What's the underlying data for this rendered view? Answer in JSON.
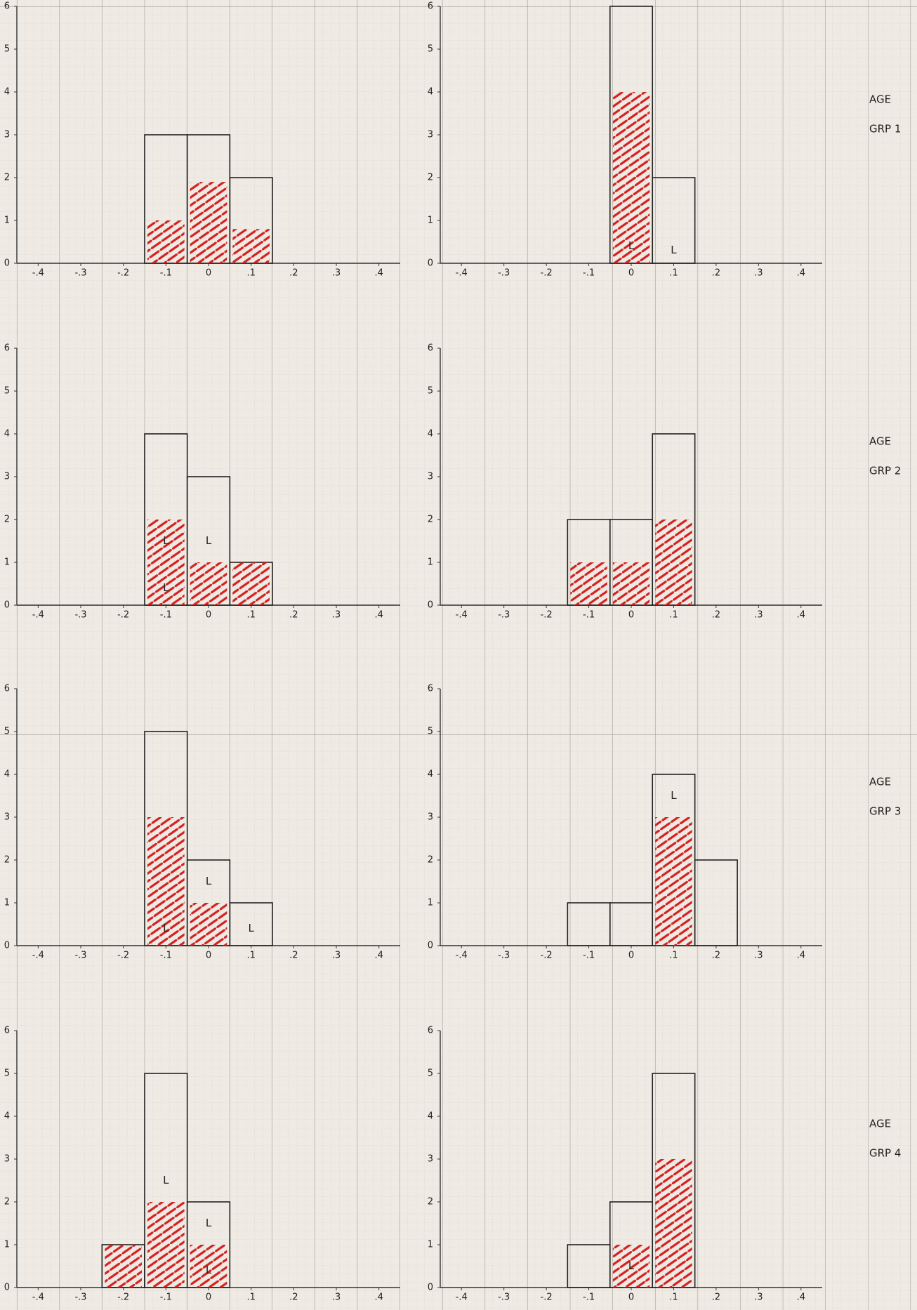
{
  "chart_data": [
    {
      "type": "bar",
      "x": [
        -0.1,
        0,
        0.1
      ],
      "series": [
        {
          "color": "#222222",
          "values": [
            3,
            3,
            2
          ]
        },
        {
          "color": "#d42020",
          "values": [
            1,
            1.9,
            0.8
          ]
        }
      ],
      "xlim": [
        -0.45,
        0.45
      ],
      "ylim": [
        0,
        6
      ],
      "yticks": [
        0,
        1,
        2,
        3,
        4,
        5,
        6
      ],
      "xticks": [
        {
          "value": -0.4,
          "label": "-.4"
        },
        {
          "value": -0.3,
          "label": "-.3"
        },
        {
          "value": -0.2,
          "label": "-.2"
        },
        {
          "value": -0.1,
          "label": "-.1"
        },
        0,
        {
          "value": 0.1,
          "label": ".1"
        },
        {
          "value": 0.2,
          "label": ".2"
        },
        {
          "value": 0.3,
          "label": ".3"
        },
        {
          "value": 0.4,
          "label": ".4"
        }
      ],
      "annotations": []
    },
    {
      "type": "bar",
      "x": [
        0,
        0.1
      ],
      "series": [
        {
          "color": "#222222",
          "values": [
            6,
            2
          ]
        },
        {
          "color": "#d42020",
          "values": [
            4,
            0
          ]
        }
      ],
      "xlim": [
        -0.45,
        0.45
      ],
      "ylim": [
        0,
        6
      ],
      "yticks": [
        0,
        1,
        2,
        3,
        4,
        5,
        6
      ],
      "xticks": [
        {
          "value": -0.4,
          "label": "-.4"
        },
        {
          "value": -0.3,
          "label": "-.3"
        },
        {
          "value": -0.2,
          "label": "-.2"
        },
        {
          "value": -0.1,
          "label": "-.1"
        },
        0,
        {
          "value": 0.1,
          "label": ".1"
        },
        {
          "value": 0.2,
          "label": ".2"
        },
        {
          "value": 0.3,
          "label": ".3"
        },
        {
          "value": 0.4,
          "label": ".4"
        }
      ],
      "annotations": [
        {
          "text": "L",
          "x": 0,
          "y": 0.4
        },
        {
          "text": "L",
          "x": 0.1,
          "y": 0.3
        }
      ],
      "group_label": [
        "AGE",
        "GRP 1"
      ]
    },
    {
      "type": "bar",
      "x": [
        -0.1,
        0,
        0.1
      ],
      "series": [
        {
          "color": "#222222",
          "values": [
            4,
            3,
            1
          ]
        },
        {
          "color": "#d42020",
          "values": [
            2,
            1,
            1
          ]
        }
      ],
      "xlim": [
        -0.45,
        0.45
      ],
      "ylim": [
        0,
        6
      ],
      "yticks": [
        0,
        1,
        2,
        3,
        4,
        5,
        6
      ],
      "xticks": [
        {
          "value": -0.4,
          "label": "-.4"
        },
        {
          "value": -0.3,
          "label": "-.3"
        },
        {
          "value": -0.2,
          "label": "-.2"
        },
        {
          "value": -0.1,
          "label": "-.1"
        },
        0,
        {
          "value": 0.1,
          "label": ".1"
        },
        {
          "value": 0.2,
          "label": ".2"
        },
        {
          "value": 0.3,
          "label": ".3"
        },
        {
          "value": 0.4,
          "label": ".4"
        }
      ],
      "annotations": [
        {
          "text": "L",
          "x": -0.1,
          "y": 1.5
        },
        {
          "text": "L",
          "x": -0.1,
          "y": 0.4
        },
        {
          "text": "L",
          "x": 0,
          "y": 1.5
        }
      ]
    },
    {
      "type": "bar",
      "x": [
        -0.1,
        0,
        0.1
      ],
      "series": [
        {
          "color": "#222222",
          "values": [
            2,
            2,
            4
          ]
        },
        {
          "color": "#d42020",
          "values": [
            1,
            1,
            2
          ]
        }
      ],
      "xlim": [
        -0.45,
        0.45
      ],
      "ylim": [
        0,
        6
      ],
      "yticks": [
        0,
        1,
        2,
        3,
        4,
        5,
        6
      ],
      "xticks": [
        {
          "value": -0.4,
          "label": "-.4"
        },
        {
          "value": -0.3,
          "label": "-.3"
        },
        {
          "value": -0.2,
          "label": "-.2"
        },
        {
          "value": -0.1,
          "label": "-.1"
        },
        0,
        {
          "value": 0.1,
          "label": ".1"
        },
        {
          "value": 0.2,
          "label": ".2"
        },
        {
          "value": 0.3,
          "label": ".3"
        },
        {
          "value": 0.4,
          "label": ".4"
        }
      ],
      "annotations": [],
      "group_label": [
        "AGE",
        "GRP 2"
      ]
    },
    {
      "type": "bar",
      "x": [
        -0.1,
        0,
        0.1
      ],
      "series": [
        {
          "color": "#222222",
          "values": [
            5,
            2,
            1
          ]
        },
        {
          "color": "#d42020",
          "values": [
            3,
            1,
            0
          ]
        }
      ],
      "xlim": [
        -0.45,
        0.45
      ],
      "ylim": [
        0,
        6
      ],
      "yticks": [
        0,
        1,
        2,
        3,
        4,
        5,
        6
      ],
      "xticks": [
        {
          "value": -0.4,
          "label": "-.4"
        },
        {
          "value": -0.3,
          "label": "-.3"
        },
        {
          "value": -0.2,
          "label": "-.2"
        },
        {
          "value": -0.1,
          "label": "-.1"
        },
        0,
        {
          "value": 0.1,
          "label": ".1"
        },
        {
          "value": 0.2,
          "label": ".2"
        },
        {
          "value": 0.3,
          "label": ".3"
        },
        {
          "value": 0.4,
          "label": ".4"
        }
      ],
      "annotations": [
        {
          "text": "L",
          "x": -0.1,
          "y": 0.4
        },
        {
          "text": "L",
          "x": 0,
          "y": 1.5
        },
        {
          "text": "L",
          "x": 0.1,
          "y": 0.4
        }
      ]
    },
    {
      "type": "bar",
      "x": [
        -0.1,
        0,
        0.1,
        0.2
      ],
      "series": [
        {
          "color": "#222222",
          "values": [
            1,
            1,
            4,
            2
          ]
        },
        {
          "color": "#d42020",
          "values": [
            0,
            0,
            3,
            0
          ]
        }
      ],
      "xlim": [
        -0.45,
        0.45
      ],
      "ylim": [
        0,
        6
      ],
      "yticks": [
        0,
        1,
        2,
        3,
        4,
        5,
        6
      ],
      "xticks": [
        {
          "value": -0.4,
          "label": "-.4"
        },
        {
          "value": -0.3,
          "label": "-.3"
        },
        {
          "value": -0.2,
          "label": "-.2"
        },
        {
          "value": -0.1,
          "label": "-.1"
        },
        0,
        {
          "value": 0.1,
          "label": ".1"
        },
        {
          "value": 0.2,
          "label": ".2"
        },
        {
          "value": 0.3,
          "label": ".3"
        },
        {
          "value": 0.4,
          "label": ".4"
        }
      ],
      "annotations": [
        {
          "text": "L",
          "x": 0.1,
          "y": 3.5
        }
      ],
      "group_label": [
        "AGE",
        "GRP 3"
      ]
    },
    {
      "type": "bar",
      "x": [
        -0.2,
        -0.1,
        0
      ],
      "series": [
        {
          "color": "#222222",
          "values": [
            1,
            5,
            2
          ]
        },
        {
          "color": "#d42020",
          "values": [
            1,
            2,
            1
          ]
        }
      ],
      "xlim": [
        -0.45,
        0.45
      ],
      "ylim": [
        0,
        6
      ],
      "yticks": [
        0,
        1,
        2,
        3,
        4,
        5,
        6
      ],
      "xticks": [
        {
          "value": -0.4,
          "label": "-.4"
        },
        {
          "value": -0.3,
          "label": "-.3"
        },
        {
          "value": -0.2,
          "label": "-.2"
        },
        {
          "value": -0.1,
          "label": "-.1"
        },
        0,
        {
          "value": 0.1,
          "label": ".1"
        },
        {
          "value": 0.2,
          "label": ".2"
        },
        {
          "value": 0.3,
          "label": ".3"
        },
        {
          "value": 0.4,
          "label": ".4"
        }
      ],
      "annotations": [
        {
          "text": "L",
          "x": -0.1,
          "y": 2.5
        },
        {
          "text": "L",
          "x": 0,
          "y": 1.5
        },
        {
          "text": "L",
          "x": 0,
          "y": 0.4
        }
      ]
    },
    {
      "type": "bar",
      "x": [
        -0.1,
        0,
        0.1
      ],
      "series": [
        {
          "color": "#222222",
          "values": [
            1,
            2,
            5
          ]
        },
        {
          "color": "#d42020",
          "values": [
            0,
            1,
            3
          ]
        }
      ],
      "xlim": [
        -0.45,
        0.45
      ],
      "ylim": [
        0,
        6
      ],
      "yticks": [
        0,
        1,
        2,
        3,
        4,
        5,
        6
      ],
      "xticks": [
        {
          "value": -0.4,
          "label": "-.4"
        },
        {
          "value": -0.3,
          "label": "-.3"
        },
        {
          "value": -0.2,
          "label": "-.2"
        },
        {
          "value": -0.1,
          "label": "-.1"
        },
        0,
        {
          "value": 0.1,
          "label": ".1"
        },
        {
          "value": 0.2,
          "label": ".2"
        },
        {
          "value": 0.3,
          "label": ".3"
        },
        {
          "value": 0.4,
          "label": ".4"
        }
      ],
      "annotations": [
        {
          "text": "L",
          "x": 0,
          "y": 0.5
        }
      ],
      "group_label": [
        "AGE",
        "GRP 4"
      ]
    }
  ]
}
